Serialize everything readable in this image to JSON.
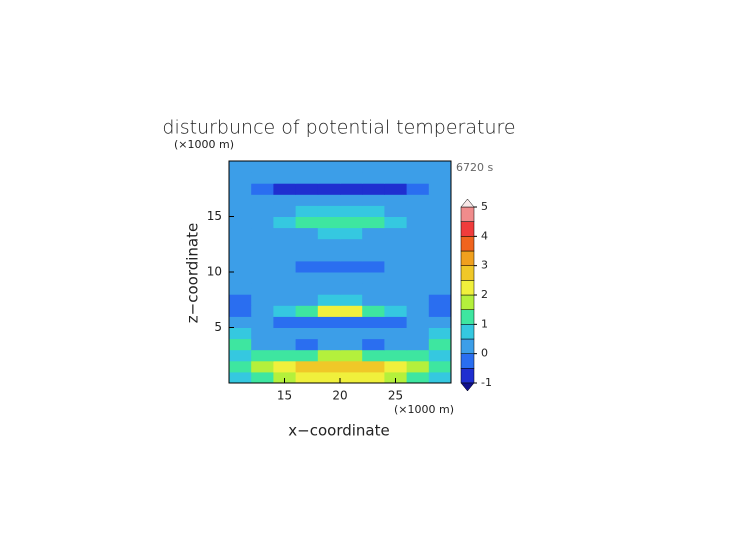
{
  "chart_data": {
    "type": "contour",
    "title": "disturbunce of potential temperature",
    "x_label": "x−coordinate",
    "y_label": "z−coordinate",
    "x_unit": "(×1000 m)",
    "y_unit": "(×1000 m)",
    "time_label": "6720 s",
    "xlim": [
      10,
      30
    ],
    "ylim": [
      0,
      20
    ],
    "xticks": [
      15,
      20,
      25
    ],
    "yticks": [
      5,
      10,
      15
    ],
    "levels": [
      -1,
      -0.5,
      0,
      0.5,
      1,
      1.5,
      2,
      2.5,
      3,
      3.5,
      4,
      4.5,
      5
    ],
    "colors": [
      "#1f2fd0",
      "#2a6ef0",
      "#3c9ee8",
      "#35c8e0",
      "#3ee6a0",
      "#b4f03c",
      "#f0f03c",
      "#f0c828",
      "#f0a01e",
      "#f0641e",
      "#f03c3c",
      "#f08c8c",
      "#f4b4b4"
    ],
    "under_color": "#10108c",
    "over_color": "#f8e8e8",
    "colorbar_ticks": [
      -1,
      0,
      1,
      2,
      3,
      4,
      5
    ],
    "values": [
      [
        0.5,
        1,
        1.5,
        2,
        2,
        2,
        2,
        1.5,
        1,
        0.5
      ],
      [
        1,
        1.5,
        2,
        2.5,
        2.5,
        2.5,
        2.5,
        2,
        1.5,
        1
      ],
      [
        0.5,
        1,
        1,
        1,
        1.5,
        1.5,
        1,
        1,
        1,
        0.5
      ],
      [
        1,
        0,
        0,
        -0.5,
        0,
        0,
        -0.5,
        0,
        0,
        1
      ],
      [
        0.5,
        0,
        0,
        0,
        0,
        0,
        0,
        0,
        0,
        0.5
      ],
      [
        0,
        0,
        -0.5,
        -0.5,
        -0.5,
        -0.5,
        -0.5,
        -0.5,
        0,
        0
      ],
      [
        -0.5,
        0,
        0.5,
        1,
        2,
        2,
        1,
        0.5,
        0,
        -0.5
      ],
      [
        -0.5,
        0,
        0,
        0,
        0.5,
        0.5,
        0,
        0,
        0,
        -0.5
      ],
      [
        0,
        0,
        0,
        0,
        0,
        0,
        0,
        0,
        0,
        0
      ],
      [
        0,
        0,
        0,
        0,
        0,
        0,
        0,
        0,
        0,
        0
      ],
      [
        0,
        0,
        0,
        -0.5,
        -0.5,
        -0.5,
        -0.5,
        0,
        0,
        0
      ],
      [
        0,
        0,
        0,
        0,
        0,
        0,
        0,
        0,
        0,
        0
      ],
      [
        0,
        0,
        0,
        0,
        0,
        0,
        0,
        0,
        0,
        0
      ],
      [
        0,
        0,
        0,
        0,
        0.5,
        0.5,
        0,
        0,
        0,
        0
      ],
      [
        0,
        0,
        0.5,
        1,
        1,
        1,
        1,
        0.5,
        0,
        0
      ],
      [
        0,
        0,
        0,
        0.5,
        0.5,
        0.5,
        0.5,
        0,
        0,
        0
      ],
      [
        0,
        0,
        0,
        0,
        0,
        0,
        0,
        0,
        0,
        0
      ],
      [
        0,
        -0.5,
        -1,
        -1,
        -1,
        -1,
        -1,
        -1,
        -0.5,
        0
      ],
      [
        0,
        0,
        0,
        0,
        0,
        0,
        0,
        0,
        0,
        0
      ],
      [
        0,
        0,
        0,
        0,
        0,
        0,
        0,
        0,
        0,
        0
      ]
    ]
  }
}
